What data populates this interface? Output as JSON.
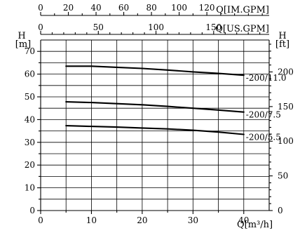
{
  "chart_data": {
    "type": "line",
    "title": "",
    "xlabel": "Q[m³/h]",
    "ylabel": "H [m]",
    "xlim": [
      0,
      45
    ],
    "ylim": [
      0,
      75
    ],
    "grid": true,
    "x_ticks": [
      0,
      10,
      20,
      30,
      40
    ],
    "y_ticks": [
      0,
      10,
      20,
      30,
      40,
      50,
      60,
      70
    ],
    "top_axis_im_gpm": {
      "label": "Q[IM.GPM]",
      "ticks": [
        0,
        20,
        40,
        60,
        80,
        100,
        120
      ]
    },
    "top_axis_us_gpm": {
      "label": "Q[US.GPM]",
      "ticks": [
        0,
        50,
        100,
        150
      ]
    },
    "right_axis_ft": {
      "label": "H [ft]",
      "ticks": [
        0,
        50,
        100,
        150,
        200
      ]
    },
    "series": [
      {
        "name": "-200/11.0",
        "x": [
          5,
          10,
          15,
          20,
          25,
          30,
          35,
          40
        ],
        "y": [
          63.5,
          63.5,
          63.0,
          62.5,
          61.8,
          61.0,
          60.3,
          59.5
        ]
      },
      {
        "name": "-200/7.5",
        "x": [
          5,
          10,
          15,
          20,
          25,
          30,
          35,
          40
        ],
        "y": [
          47.8,
          47.5,
          47.0,
          46.5,
          45.8,
          45.0,
          44.2,
          43.3
        ]
      },
      {
        "name": "-200/5.5",
        "x": [
          5,
          10,
          15,
          20,
          25,
          30,
          35,
          40
        ],
        "y": [
          37.3,
          37.0,
          36.7,
          36.3,
          35.9,
          35.3,
          34.5,
          33.5
        ]
      }
    ]
  },
  "labels": {
    "h_left": "H",
    "m_unit": "[m]",
    "h_right": "H",
    "ft_unit": "[ft]",
    "q_im": "Q[IM.GPM]",
    "q_us": "Q[US.GPM]",
    "q_m3": "Q[m³/h]"
  }
}
